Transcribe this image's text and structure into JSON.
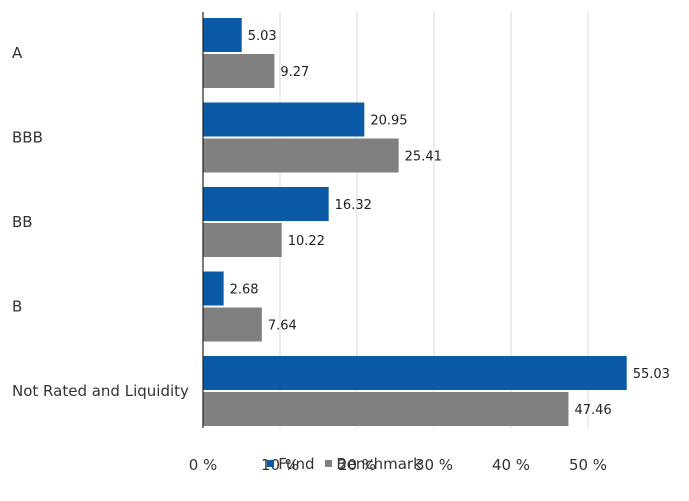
{
  "chart_data": {
    "type": "bar",
    "orientation": "horizontal",
    "title": "",
    "categories": [
      "A",
      "BBB",
      "BB",
      "B",
      "Not Rated and Liquidity"
    ],
    "series": [
      {
        "name": "Fund",
        "color": "#0a5aa5",
        "values": [
          5.03,
          20.95,
          16.32,
          2.68,
          55.03
        ]
      },
      {
        "name": "Benchmark",
        "color": "#808080",
        "values": [
          9.27,
          25.41,
          10.22,
          7.64,
          47.46
        ]
      }
    ],
    "value_ticks": [
      "0 %",
      "10 %",
      "20 %",
      "30 %",
      "40 %",
      "50 %"
    ],
    "xlim": [
      0,
      60
    ],
    "grid": true,
    "legend_position": "bottom",
    "show_data_labels": true
  }
}
